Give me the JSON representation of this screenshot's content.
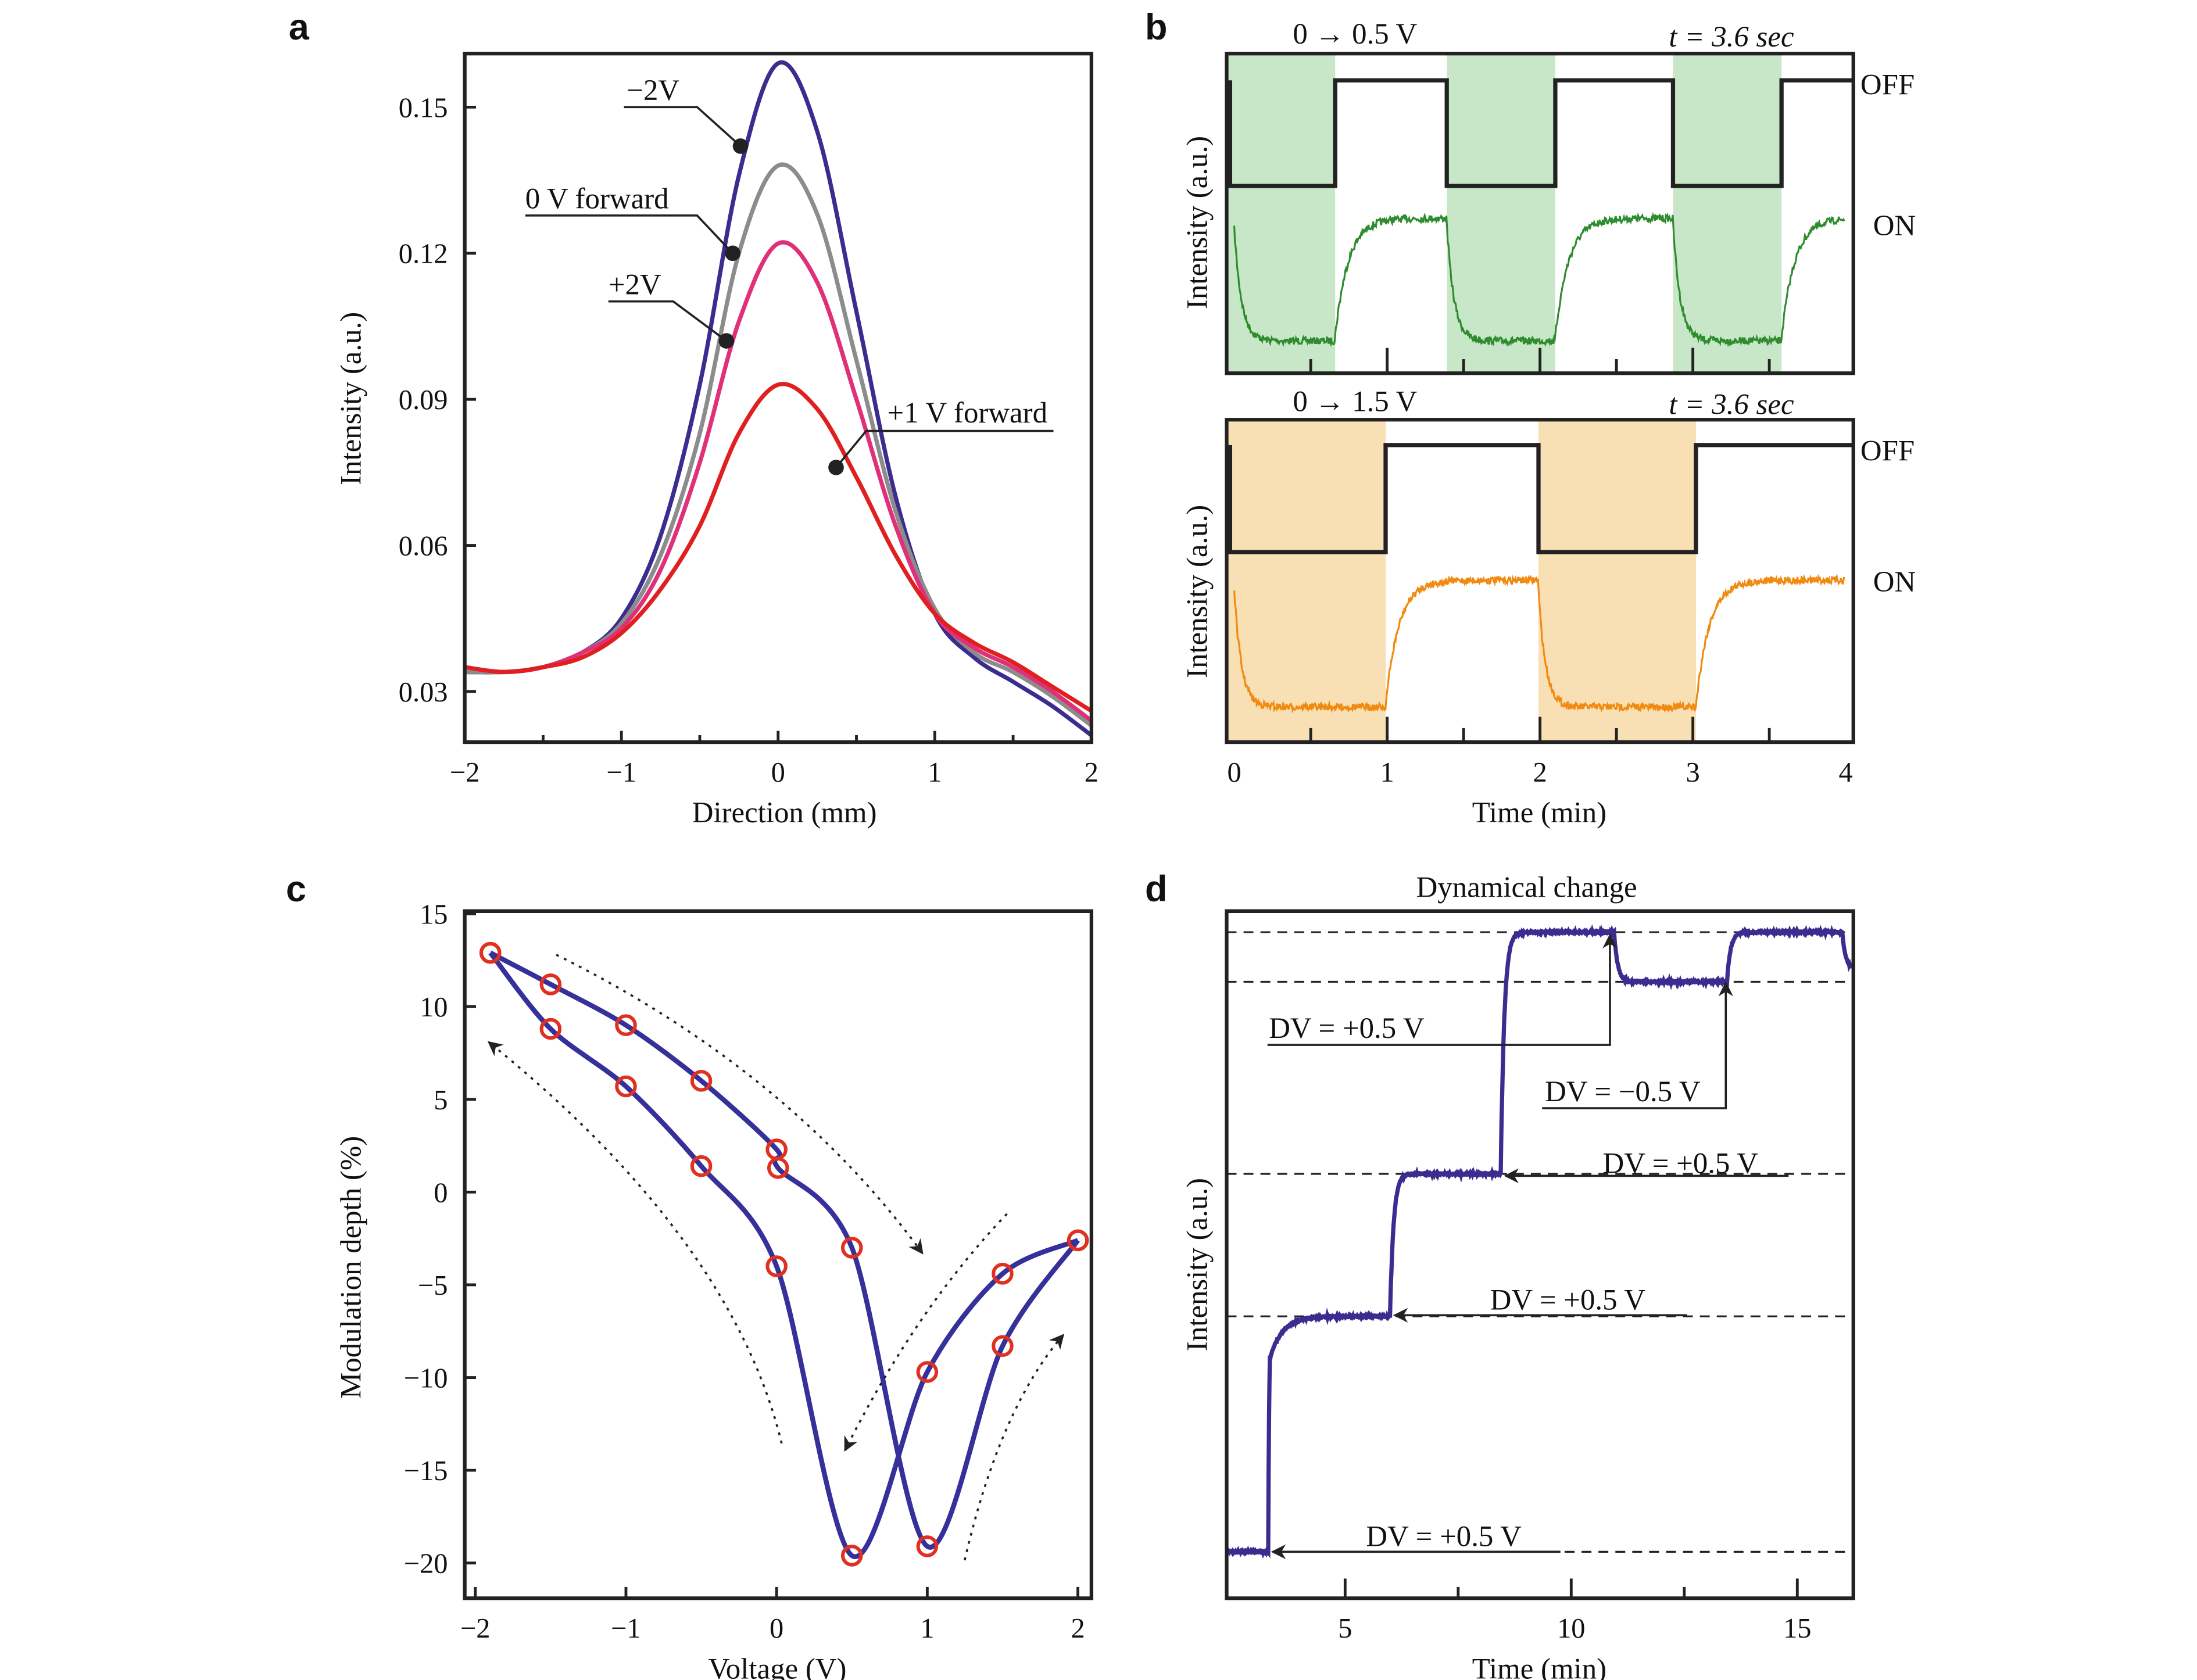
{
  "panel_labels": {
    "a": "a",
    "b": "b",
    "c": "c",
    "d": "d"
  },
  "colors": {
    "neg2v": "#3b2d8f",
    "zero_v": "#8c8c8c",
    "plus2v": "#e0307a",
    "plus1v": "#e02020",
    "green_trace": "#2e8b2e",
    "green_shade": "#c8e6c8",
    "orange_trace": "#f08a10",
    "orange_shade": "#f8dfb4",
    "loop_line": "#35309a",
    "loop_marker": "#e03020",
    "step_trace": "#3b2d8f"
  },
  "chart_data": [
    {
      "panel": "a",
      "type": "line",
      "xlabel": "Direction (mm)",
      "ylabel": "Intensity (a.u.)",
      "xlim": [
        -2,
        2
      ],
      "ylim": [
        0.0196,
        0.161
      ],
      "xticks": [
        "−2",
        "−1",
        "0",
        "1",
        "2"
      ],
      "xtick_values": [
        -2,
        -1,
        0,
        1,
        2
      ],
      "yticks": [
        "0.03",
        "0.06",
        "0.09",
        "0.12",
        "0.15"
      ],
      "ytick_values": [
        0.03,
        0.06,
        0.09,
        0.12,
        0.15
      ],
      "grid": false,
      "x": [
        -2,
        -1.75,
        -1.5,
        -1.25,
        -1,
        -0.75,
        -0.5,
        -0.25,
        0,
        0.25,
        0.5,
        0.75,
        1,
        1.25,
        1.5,
        1.75,
        2
      ],
      "series": [
        {
          "name": "−2V",
          "color_key": "neg2v",
          "values": [
            0.034,
            0.034,
            0.035,
            0.038,
            0.045,
            0.062,
            0.093,
            0.136,
            0.159,
            0.145,
            0.108,
            0.07,
            0.046,
            0.037,
            0.032,
            0.027,
            0.021
          ],
          "marker": [
            -0.24,
            0.142
          ]
        },
        {
          "name": "0 V forward",
          "color_key": "zero_v",
          "values": [
            0.034,
            0.034,
            0.035,
            0.038,
            0.044,
            0.058,
            0.083,
            0.12,
            0.138,
            0.128,
            0.098,
            0.067,
            0.047,
            0.038,
            0.034,
            0.029,
            0.023
          ],
          "marker": [
            -0.29,
            0.12
          ]
        },
        {
          "name": "+2V",
          "color_key": "plus2v",
          "values": [
            0.035,
            0.034,
            0.035,
            0.038,
            0.043,
            0.055,
            0.077,
            0.106,
            0.122,
            0.114,
            0.09,
            0.064,
            0.046,
            0.039,
            0.035,
            0.03,
            0.024
          ],
          "marker": [
            -0.33,
            0.102
          ]
        },
        {
          "name": "+1 V forward",
          "color_key": "plus1v",
          "values": [
            0.035,
            0.034,
            0.035,
            0.037,
            0.042,
            0.051,
            0.064,
            0.083,
            0.093,
            0.088,
            0.074,
            0.058,
            0.046,
            0.04,
            0.036,
            0.031,
            0.026
          ],
          "marker": [
            0.37,
            0.076
          ]
        }
      ]
    },
    {
      "panel": "b-top",
      "type": "line",
      "title": "0 → 0.5 V",
      "annotation": "t = 3.6 sec",
      "ylabel": "Intensity (a.u.)",
      "xlim": [
        -0.05,
        4.05
      ],
      "state_labels": [
        "OFF",
        "ON"
      ],
      "voltage_on_intervals_min": [
        [
          -0.05,
          0.66
        ],
        [
          1.39,
          2.1
        ],
        [
          2.87,
          3.58
        ]
      ],
      "shade_color_key": "green_shade",
      "trace_color_key": "green_trace"
    },
    {
      "panel": "b-bottom",
      "type": "line",
      "title": "0 → 1.5 V",
      "annotation": "t = 3.6 sec",
      "xlabel": "Time (min)",
      "ylabel": "Intensity (a.u.)",
      "xlim": [
        -0.05,
        4.05
      ],
      "xticks": [
        "0",
        "1",
        "2",
        "3",
        "4"
      ],
      "xtick_values": [
        0,
        1,
        2,
        3,
        4
      ],
      "state_labels": [
        "OFF",
        "ON"
      ],
      "voltage_on_intervals_min": [
        [
          -0.05,
          0.99
        ],
        [
          1.99,
          3.02
        ]
      ],
      "shade_color_key": "orange_shade",
      "trace_color_key": "orange_trace"
    },
    {
      "panel": "c",
      "type": "scatter",
      "xlabel": "Voltage (V)",
      "ylabel": "Modulation depth (%)",
      "xlim": [
        -2.07,
        2.09
      ],
      "ylim": [
        -21.9,
        15.15
      ],
      "xticks": [
        "−2",
        "−1",
        "0",
        "1",
        "2"
      ],
      "xtick_values": [
        -2,
        -1,
        0,
        1,
        2
      ],
      "yticks": [
        "15",
        "10",
        "5",
        "0",
        "−5",
        "−10",
        "−15",
        "−20"
      ],
      "ytick_values": [
        15,
        10,
        5,
        0,
        -5,
        -10,
        -15,
        -20
      ],
      "grid": false,
      "branches": [
        {
          "x": [
            -1.9,
            -1.5,
            -1.0,
            -0.5,
            0.0,
            0.01,
            0.5,
            1.0,
            1.5,
            2.0
          ],
          "y": [
            12.9,
            11.2,
            9.0,
            6.0,
            2.3,
            1.3,
            -3.0,
            -19.1,
            -8.3,
            -2.6
          ]
        },
        {
          "x": [
            -1.9,
            -1.5,
            -1.0,
            -0.5,
            0.0,
            0.5,
            1.0,
            1.5,
            2.0
          ],
          "y": [
            12.9,
            8.8,
            5.7,
            1.4,
            -4.0,
            -19.6,
            -9.7,
            -4.4,
            -2.6
          ]
        }
      ]
    },
    {
      "panel": "d",
      "type": "line",
      "title": "Dynamical change",
      "xlabel": "Time (min)",
      "ylabel": "Intensity (a.u.)",
      "xlim": [
        2.38,
        16.24
      ],
      "xticks": [
        "5",
        "10",
        "15"
      ],
      "xtick_values": [
        5,
        10,
        15
      ],
      "relative_levels": [
        0,
        0.38,
        0.61,
        0.92,
        1.0
      ],
      "steps": [
        {
          "t": 3.3,
          "from": 0,
          "to": 0.38,
          "label": "DV = +0.5 V"
        },
        {
          "t": 6.0,
          "from": 0.38,
          "to": 0.61,
          "label": "DV = +0.5 V"
        },
        {
          "t": 8.45,
          "from": 0.61,
          "to": 1.0,
          "label": "DV = +0.5 V"
        },
        {
          "t": 10.95,
          "from": 1.0,
          "to": 0.92,
          "label": "DV = +0.5 V"
        },
        {
          "t": 13.45,
          "from": 0.92,
          "to": 1.0,
          "label": "DV = −0.5 V"
        },
        {
          "t": 16.0,
          "from": 1.0,
          "to": 0.94
        }
      ]
    }
  ]
}
